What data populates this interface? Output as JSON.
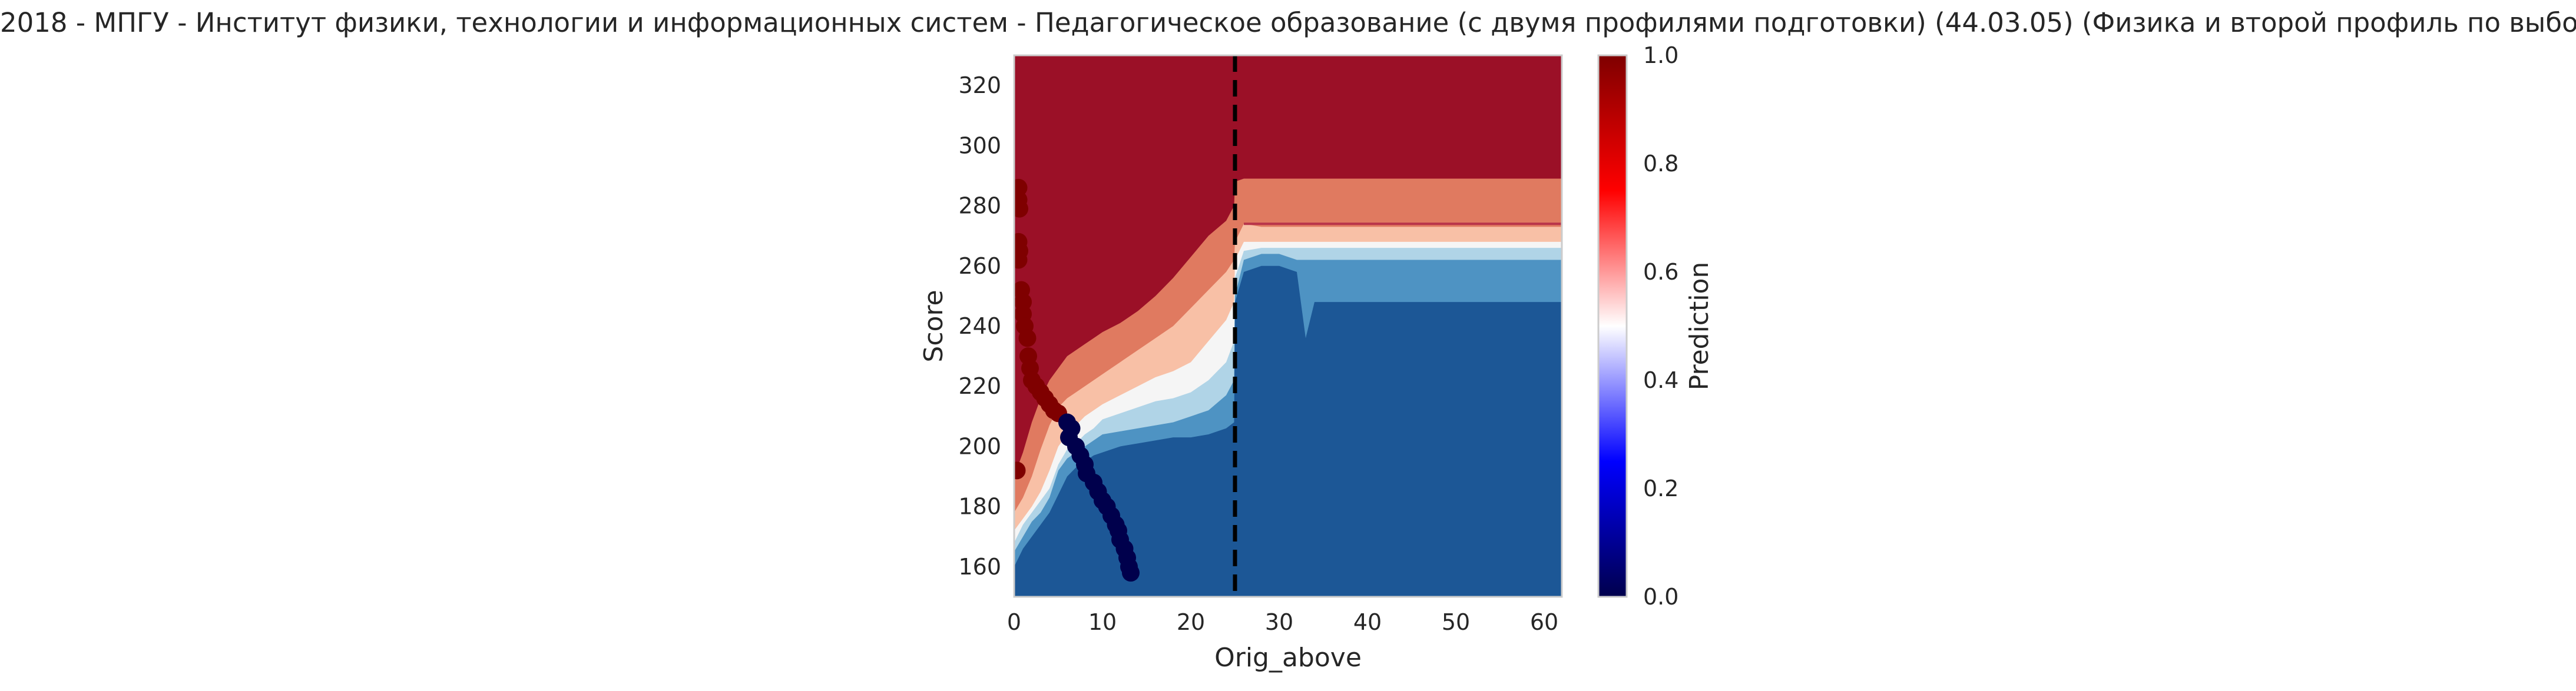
{
  "chart_data": {
    "type": "heatmap",
    "title": "2018 - МПГУ - Институт физики, технологии и информационных систем - Педагогическое образование (с двумя профилями подготовки) (44.03.05) (Физика и второй профиль по выбору)",
    "xlabel": "Orig_above",
    "ylabel": "Score",
    "xlim": [
      0,
      62
    ],
    "ylim": [
      150,
      330
    ],
    "x_ticks": [
      0,
      10,
      20,
      30,
      40,
      50,
      60
    ],
    "y_ticks": [
      160,
      180,
      200,
      220,
      240,
      260,
      280,
      300,
      320
    ],
    "grid": false,
    "colormap": "seismic",
    "colorbar": {
      "label": "Prediction",
      "range": [
        0,
        1
      ],
      "ticks": [
        "0.0",
        "0.2",
        "0.4",
        "0.6",
        "0.8",
        "1.0"
      ]
    },
    "contour_levels": [
      0.0,
      0.15,
      0.3,
      0.45,
      0.55,
      0.7,
      0.85,
      1.0
    ],
    "contour_colors": [
      "#1c5796",
      "#4e93c3",
      "#b0d4e7",
      "#f5f5f5",
      "#f8c0a6",
      "#e07a60",
      "#9b1027"
    ],
    "vertical_line": {
      "x": 25,
      "style": "dashed",
      "color": "#000000"
    },
    "boundaries": {
      "x": [
        0,
        1,
        2,
        3,
        4,
        5,
        6,
        7,
        8,
        9,
        10,
        12,
        14,
        16,
        18,
        20,
        22,
        24,
        24.9,
        25,
        26,
        28,
        30,
        32,
        33,
        34,
        40,
        50,
        62
      ],
      "b1": [
        160,
        166,
        170,
        174,
        178,
        184,
        190,
        193,
        195,
        197,
        198,
        200,
        201,
        202,
        203,
        203,
        204,
        206,
        208,
        248,
        258,
        260,
        260,
        258,
        236,
        248,
        248,
        248,
        248
      ],
      "b2": [
        165,
        170,
        175,
        178,
        183,
        192,
        196,
        198,
        200,
        202,
        204,
        205,
        206,
        207,
        208,
        210,
        212,
        217,
        222,
        250,
        262,
        264,
        264,
        262,
        262,
        262,
        262,
        262,
        262
      ],
      "b3": [
        168,
        174,
        178,
        182,
        186,
        194,
        199,
        201,
        204,
        206,
        209,
        211,
        213,
        215,
        216,
        218,
        222,
        228,
        235,
        256,
        265,
        266,
        266,
        266,
        266,
        266,
        266,
        266,
        266
      ],
      "b4": [
        172,
        176,
        180,
        185,
        192,
        200,
        204,
        207,
        210,
        212,
        214,
        217,
        220,
        223,
        225,
        228,
        235,
        242,
        248,
        262,
        268,
        268,
        268,
        268,
        268,
        268,
        268,
        268,
        268
      ],
      "b5": [
        178,
        183,
        190,
        199,
        207,
        213,
        216,
        218,
        220,
        222,
        224,
        228,
        232,
        236,
        240,
        246,
        252,
        258,
        262,
        268,
        274,
        273,
        273,
        273,
        273,
        273,
        273,
        273,
        273
      ],
      "b6": [
        190,
        198,
        208,
        216,
        222,
        226,
        230,
        232,
        234,
        236,
        238,
        241,
        245,
        250,
        256,
        263,
        270,
        275,
        280,
        288,
        289,
        289,
        289,
        289,
        289,
        289,
        289,
        289,
        289
      ]
    },
    "points_low": [
      [
        6,
        208
      ],
      [
        6.5,
        206
      ],
      [
        6.2,
        203
      ],
      [
        7,
        200
      ],
      [
        7.5,
        197
      ],
      [
        8,
        194
      ],
      [
        8.2,
        191
      ],
      [
        9,
        188
      ],
      [
        9.5,
        185
      ],
      [
        10,
        182
      ],
      [
        10.5,
        180
      ],
      [
        11,
        177
      ],
      [
        11.5,
        174
      ],
      [
        11.8,
        172
      ],
      [
        12,
        169
      ],
      [
        12.5,
        166
      ],
      [
        12.8,
        163
      ],
      [
        13,
        160
      ],
      [
        13.2,
        158
      ]
    ],
    "points_high": [
      [
        0.5,
        286
      ],
      [
        0.5,
        282
      ],
      [
        0.6,
        279
      ],
      [
        0.5,
        268
      ],
      [
        0.6,
        265
      ],
      [
        0.5,
        262
      ],
      [
        0.8,
        252
      ],
      [
        1,
        248
      ],
      [
        1,
        244
      ],
      [
        1.2,
        240
      ],
      [
        1.5,
        236
      ],
      [
        1.6,
        230
      ],
      [
        1.8,
        226
      ],
      [
        2,
        222
      ],
      [
        2.5,
        220
      ],
      [
        3,
        218
      ],
      [
        3.5,
        216
      ],
      [
        4,
        214
      ],
      [
        4.5,
        212
      ],
      [
        5,
        211
      ],
      [
        0.3,
        192
      ]
    ],
    "point_colors": {
      "low": "#00004c",
      "high": "#7f0000"
    }
  }
}
